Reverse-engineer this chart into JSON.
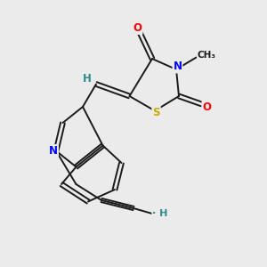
{
  "background_color": "#ebebeb",
  "atom_colors": {
    "C": "#1a1a1a",
    "N": "#0000ff",
    "O": "#ff0000",
    "S": "#ccaa00",
    "H": "#2e8b8b"
  },
  "figsize": [
    3.0,
    3.0
  ],
  "dpi": 100
}
